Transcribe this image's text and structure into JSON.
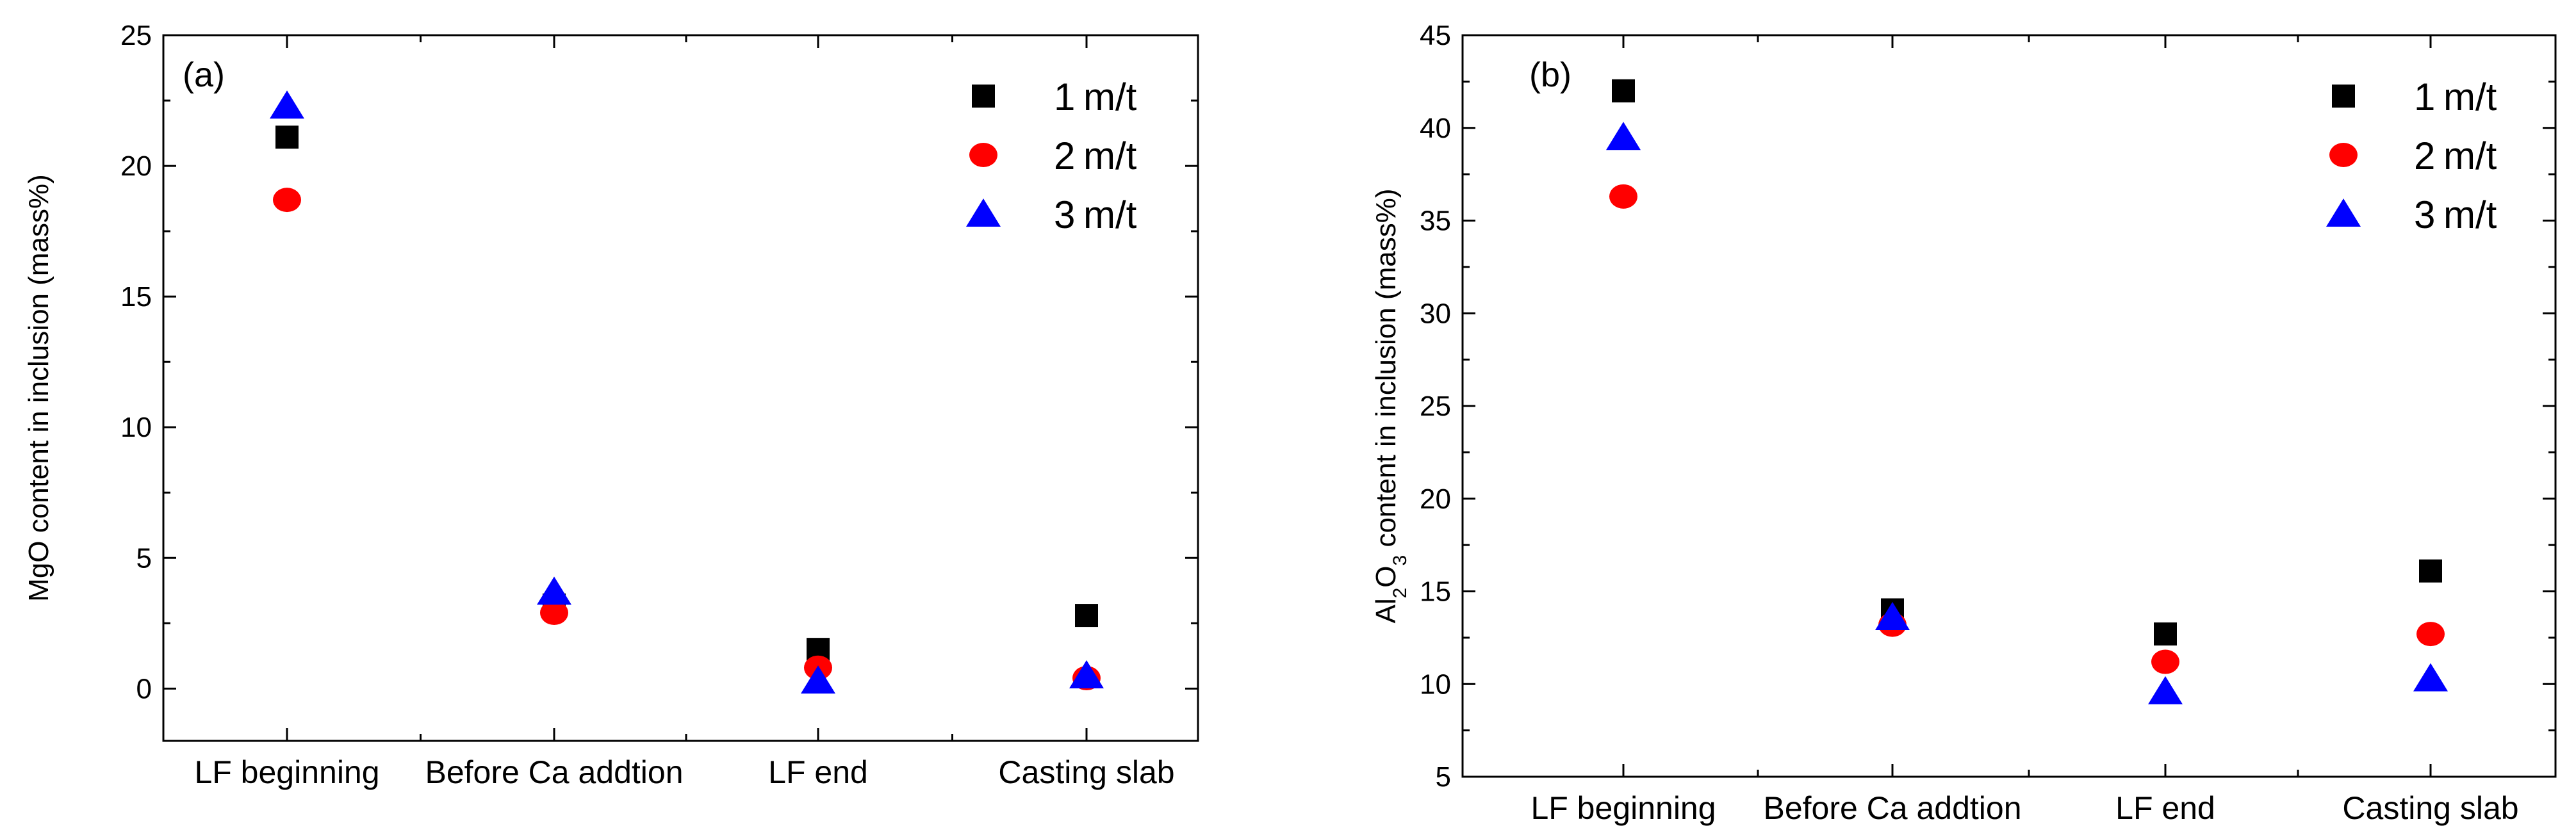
{
  "chart_data": [
    {
      "type": "scatter",
      "panel_label": "(a)",
      "ylabel": "MgO content in inclusion (mass%)",
      "ylabel_parts": [
        {
          "text": "MgO content in inclusion (mass%)",
          "sub": false
        }
      ],
      "categories": [
        "LF beginning",
        "Before Ca addtion",
        "LF end",
        "Casting slab"
      ],
      "yticks": [
        0,
        5,
        10,
        15,
        20,
        25
      ],
      "ylim": [
        -2,
        25
      ],
      "grid": false,
      "legend_position": "top-right",
      "series": [
        {
          "name": "1",
          "unit": "m/t",
          "marker": "square",
          "color": "#000000",
          "values": [
            21.1,
            3.2,
            1.5,
            2.8
          ]
        },
        {
          "name": "2",
          "unit": "m/t",
          "marker": "circle",
          "color": "#ff0000",
          "values": [
            18.7,
            2.9,
            0.8,
            0.4
          ]
        },
        {
          "name": "3",
          "unit": "m/t",
          "marker": "triangle",
          "color": "#0000ff",
          "values": [
            22.3,
            3.7,
            0.3,
            0.5
          ]
        }
      ]
    },
    {
      "type": "scatter",
      "panel_label": "(b)",
      "ylabel": "Al2O3 content in inclusion (mass%)",
      "ylabel_parts": [
        {
          "text": "Al",
          "sub": false
        },
        {
          "text": "2",
          "sub": true
        },
        {
          "text": "O",
          "sub": false
        },
        {
          "text": "3",
          "sub": true
        },
        {
          "text": " content in inclusion (mass%)",
          "sub": false
        }
      ],
      "categories": [
        "LF beginning",
        "Before Ca addtion",
        "LF end",
        "Casting slab"
      ],
      "yticks": [
        5,
        10,
        15,
        20,
        25,
        30,
        35,
        40,
        45
      ],
      "ylim": [
        5,
        45
      ],
      "grid": false,
      "legend_position": "top-right",
      "series": [
        {
          "name": "1",
          "unit": "m/t",
          "marker": "square",
          "color": "#000000",
          "values": [
            42.0,
            14.0,
            12.7,
            16.1
          ]
        },
        {
          "name": "2",
          "unit": "m/t",
          "marker": "circle",
          "color": "#ff0000",
          "values": [
            36.3,
            13.2,
            11.2,
            12.7
          ]
        },
        {
          "name": "3",
          "unit": "m/t",
          "marker": "triangle",
          "color": "#0000ff",
          "values": [
            39.5,
            13.6,
            9.6,
            10.3
          ]
        }
      ]
    }
  ]
}
